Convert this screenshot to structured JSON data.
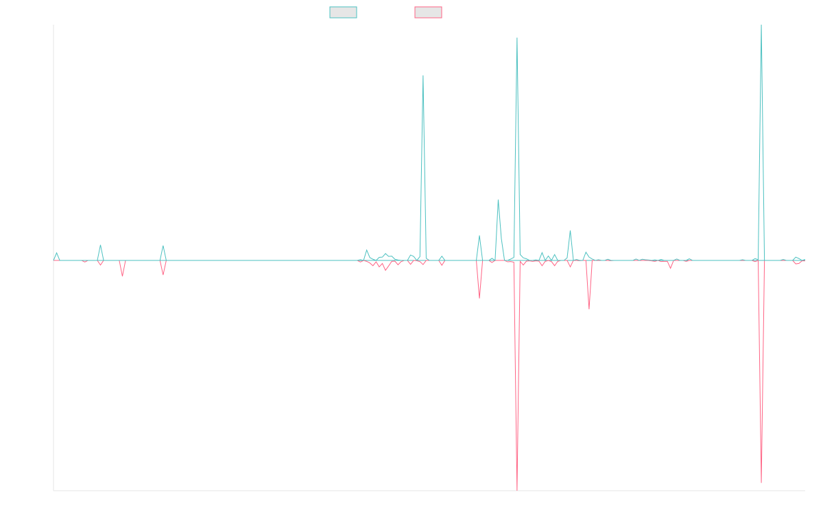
{
  "chart_data": {
    "type": "line",
    "title": "",
    "xlabel": "",
    "ylabel": "",
    "legend_position": "top-center",
    "grid": false,
    "x_count": 241,
    "xlim": [
      0,
      240
    ],
    "ylim": [
      -1.0,
      1.0
    ],
    "baseline": 0,
    "series": [
      {
        "color": "#4bc0c0",
        "fill": "#e6e6e6",
        "values": {
          "1": 0.032,
          "15": 0.066,
          "35": 0.063,
          "98": 0.003,
          "102": 0.005,
          "118": 0.785,
          "124": 0.018,
          "136": 0.106,
          "143": 0.092,
          "148": 0.945,
          "160": 0.025,
          "165": 0.127,
          "177": 0.005,
          "194": 0.004,
          "225": 0.003,
          "233": 0.004,
          "100": 0.044,
          "101": 0.012,
          "104": 0.013,
          "105": 0.014,
          "106": 0.029,
          "107": 0.017,
          "114": 0.023,
          "115": 0.017,
          "119": 0.009,
          "117": 0.016,
          "140": 0.009,
          "142": 0.258,
          "146": 0.006,
          "147": 0.013,
          "149": 0.025,
          "150": 0.011,
          "151": 0.007,
          "154": 0.002,
          "156": 0.033,
          "158": 0.019,
          "164": 0.011,
          "186": 0.006,
          "203": 0.007,
          "189": 0.003,
          "190": 0.002,
          "237": 0.014,
          "238": 0.008,
          "170": 0.035,
          "172": 0.006,
          "224": 0.008,
          "199": 0.006,
          "108": 0.018,
          "109": 0.005,
          "110": 0.002,
          "171": 0.014,
          "174": 0.003,
          "188": 0.005,
          "192": 0.002,
          "220": 0.003,
          "226": 1.0,
          "240": 0.004,
          "167": 0.004
        },
        "negative": {
          "10": -0.007,
          "22": -0.069,
          "35": -0.063,
          "15": -0.02,
          "98": -0.007,
          "102": -0.023,
          "118": -0.018,
          "124": -0.021,
          "136": -0.165,
          "148": -1.0,
          "160": -0.023,
          "165": -0.028,
          "171": -0.212,
          "194": -0.005,
          "197": -0.034,
          "202": -0.004,
          "226": -0.966,
          "101": -0.011,
          "106": -0.043,
          "107": -0.024,
          "104": -0.028,
          "105": -0.013,
          "100": -0.004,
          "110": -0.019,
          "111": -0.005,
          "114": -0.017,
          "140": -0.009,
          "150": -0.02,
          "153": -0.004,
          "156": -0.023,
          "157": -0.004,
          "159": -0.005,
          "168": -0.001,
          "178": -0.001,
          "191": -0.002,
          "192": -0.004,
          "237": -0.015,
          "238": -0.013,
          "239": -0.002,
          "240": -0.002,
          "161": -0.004,
          "117": -0.005,
          "109": -0.003,
          "108": -0.004,
          "103": -0.006,
          "116": -0.001,
          "145": -0.006,
          "146": -0.005,
          "147": -0.008,
          "149": -0.004,
          "151": -0.003,
          "152": -0.002,
          "155": -0.003,
          "154": -0.002,
          "195": -0.004,
          "196": -0.004,
          "224": -0.005
        }
      }
    ],
    "legend": [
      {
        "swatch_fill": "#e6e6e6",
        "swatch_stroke": "#4bc0c0"
      },
      {
        "swatch_fill": "#e6e6e6",
        "swatch_stroke": "#ff6384"
      }
    ],
    "colors": {
      "series_a": "#4bc0c0",
      "series_b": "#ff6384",
      "axis": "#e5e5e5",
      "baseline": "#4bc0c0"
    }
  }
}
